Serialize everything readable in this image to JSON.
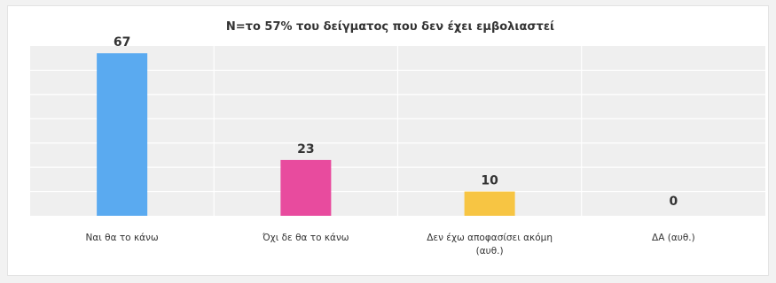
{
  "chart_data": {
    "type": "bar",
    "title": "N=το 57% του δείγματος που δεν έχει εμβολιαστεί",
    "categories": [
      [
        "Ναι θα το κάνω"
      ],
      [
        "Όχι δε θα το κάνω"
      ],
      [
        "Δεν έχω αποφασίσει ακόμη",
        "(αυθ.)"
      ],
      [
        "ΔΑ (αυθ.)"
      ]
    ],
    "values": [
      67,
      23,
      10,
      0
    ],
    "colors": [
      "#5aaaf0",
      "#e84b9e",
      "#f7c543",
      "#f7c543"
    ],
    "ylim": [
      0,
      70
    ],
    "grid": true,
    "legend": "none"
  }
}
